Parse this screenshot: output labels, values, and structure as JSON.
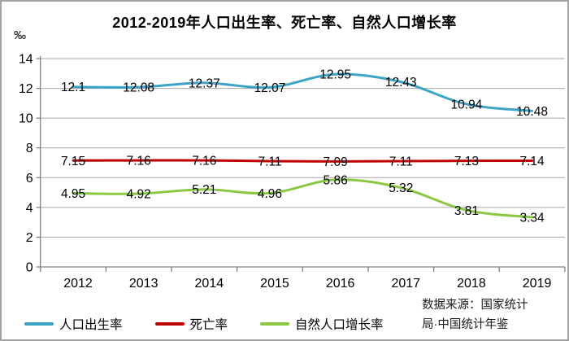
{
  "chart_data": {
    "type": "line",
    "title": "2012-2019年人口出生率、死亡率、自然人口增长率",
    "ylabel": "‰",
    "xlabel": "",
    "categories": [
      "2012",
      "2013",
      "2014",
      "2015",
      "2016",
      "2017",
      "2018",
      "2019"
    ],
    "series": [
      {
        "name": "人口出生率",
        "color": "#3BA3C6",
        "values": [
          12.1,
          12.08,
          12.37,
          12.07,
          12.95,
          12.43,
          10.94,
          10.48
        ]
      },
      {
        "name": "死亡率",
        "color": "#C00000",
        "values": [
          7.15,
          7.16,
          7.16,
          7.11,
          7.09,
          7.11,
          7.13,
          7.14
        ]
      },
      {
        "name": "自然人口增长率",
        "color": "#8BC842",
        "values": [
          4.95,
          4.92,
          5.21,
          4.96,
          5.86,
          5.32,
          3.81,
          3.34
        ]
      }
    ],
    "ylim": [
      0,
      14
    ],
    "yticks": [
      0,
      2,
      4,
      6,
      8,
      10,
      12,
      14
    ],
    "grid": true,
    "smooth": true,
    "data_labels": "center",
    "legend_position": "bottom"
  },
  "source_note": {
    "line1": "数据来源：国家统计",
    "line2": "局·中国统计年鉴"
  },
  "colors": {
    "grid": "#A6A6A6",
    "axis": "#808080",
    "text": "#000000"
  }
}
